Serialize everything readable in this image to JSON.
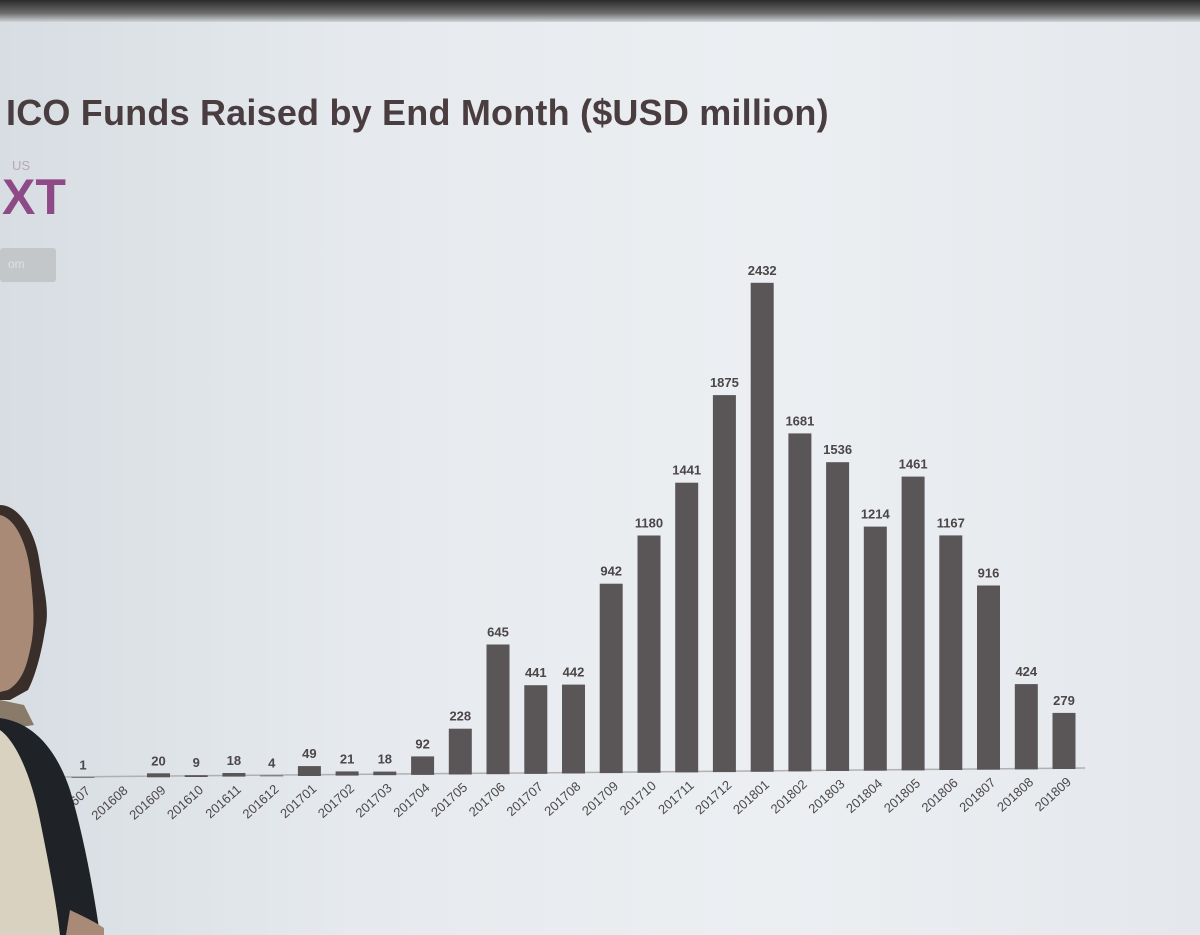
{
  "slide": {
    "title": "ICO Funds Raised by End Month ($USD million)",
    "logo_small_text": "US",
    "logo_big_text": "XT",
    "logo_pill_text": "om"
  },
  "colors": {
    "bar": "#5a5658",
    "title": "#4a3d3f",
    "logo_accent": "#8e4a86"
  },
  "chart_data": {
    "type": "bar",
    "title": "ICO Funds Raised by End Month ($USD million)",
    "xlabel": "",
    "ylabel": "",
    "grid": false,
    "legend": "none",
    "ylim": [
      0,
      2500
    ],
    "categories": [
      "201607",
      "201608",
      "201609",
      "201610",
      "201611",
      "201612",
      "201701",
      "201702",
      "201703",
      "201704",
      "201705",
      "201706",
      "201707",
      "201708",
      "201709",
      "201710",
      "201711",
      "201712",
      "201801",
      "201802",
      "201803",
      "201804",
      "201805",
      "201806",
      "201807",
      "201808",
      "201809"
    ],
    "values": [
      1,
      null,
      20,
      9,
      18,
      4,
      49,
      21,
      18,
      92,
      228,
      645,
      441,
      442,
      942,
      1180,
      1441,
      1875,
      2432,
      1681,
      1536,
      1214,
      1461,
      1167,
      916,
      424,
      279
    ],
    "value_labels": [
      "1",
      "",
      "20",
      "9",
      "18",
      "4",
      "49",
      "21",
      "18",
      "92",
      "228",
      "645",
      "441",
      "442",
      "942",
      "1180",
      "1441",
      "1875",
      "2432",
      "1681",
      "1536",
      "1214",
      "1461",
      "1167",
      "916",
      "424",
      "279"
    ]
  }
}
